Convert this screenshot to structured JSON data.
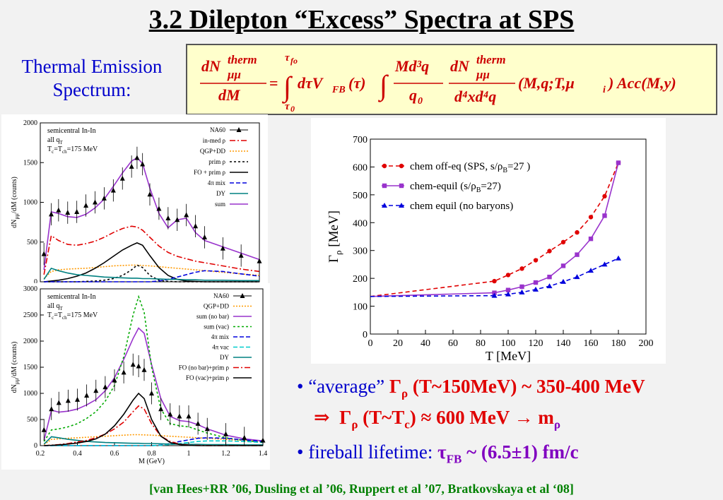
{
  "title": "3.2  Dilepton “Excess” Spectra  at SPS",
  "thermal_label": [
    "Thermal Emission",
    "Spectrum:"
  ],
  "formula": {
    "lhs_num": "dN",
    "lhs_sup": "therm",
    "lhs_sub": "μμ",
    "lhs_den": "dM",
    "upper_limit": "τ",
    "upper_limit_sub": "fo",
    "lower_limit": "τ",
    "lower_limit_sub": "0",
    "integrand1": "dτV",
    "integrand1_sub": "FB",
    "integrand1_arg": "(τ)",
    "frac2_num": "Md³q",
    "frac2_den": "q",
    "frac2_den_sub": "0",
    "frac3_num": "dN",
    "frac3_sup": "therm",
    "frac3_sub": "μμ",
    "frac3_den": "d⁴xd⁴q",
    "args": "(M,q;T,μ",
    "args_sub": "i",
    "args_end": ")  Acc(M,y)"
  },
  "chart_data": [
    {
      "type": "line",
      "title": "",
      "annotations": [
        "semicentral In-In",
        "all q",
        "T",
        "=T",
        "=175 MeV"
      ],
      "annotation_subs": [
        "T",
        "c",
        "ch"
      ],
      "ylabel": "dN",
      "ylabel_sub": "μμ",
      "ylabel_tail": "/dM (counts)",
      "ylim": [
        0,
        2000
      ],
      "yticks": [
        "0",
        "500",
        "1000",
        "1500",
        "2000"
      ],
      "xlim": [
        0.2,
        1.4
      ],
      "legend": [
        "NA60",
        "in-med ρ",
        "QGP+DD",
        "prim ρ",
        "FO + prim ρ",
        "4π mix",
        "DY",
        "sum"
      ],
      "colors": [
        "#000000",
        "#e00000",
        "#ff9900",
        "#000000",
        "#000000",
        "#0000dd",
        "#008080",
        "#9933cc"
      ],
      "x": [
        0.22,
        0.26,
        0.3,
        0.35,
        0.4,
        0.45,
        0.5,
        0.55,
        0.6,
        0.65,
        0.7,
        0.73,
        0.76,
        0.8,
        0.85,
        0.9,
        0.95,
        1.0,
        1.05,
        1.1,
        1.2,
        1.3,
        1.4
      ],
      "series": [
        {
          "name": "NA60",
          "values": [
            350,
            850,
            900,
            870,
            880,
            960,
            1000,
            1050,
            1150,
            1300,
            1450,
            1560,
            1480,
            1100,
            920,
            800,
            780,
            840,
            700,
            560,
            420,
            330,
            260
          ]
        },
        {
          "name": "in-med ρ",
          "values": [
            90,
            580,
            520,
            470,
            460,
            480,
            510,
            560,
            620,
            670,
            700,
            690,
            650,
            560,
            450,
            370,
            320,
            290,
            260,
            240,
            200,
            160,
            130
          ]
        },
        {
          "name": "QGP+DD",
          "values": [
            40,
            130,
            150,
            160,
            165,
            170,
            180,
            190,
            200,
            205,
            210,
            210,
            205,
            200,
            190,
            180,
            170,
            160,
            150,
            140,
            120,
            100,
            80
          ]
        },
        {
          "name": "prim ρ",
          "values": [
            0,
            0,
            0,
            0,
            0,
            5,
            10,
            20,
            40,
            80,
            150,
            210,
            180,
            80,
            20,
            5,
            0,
            0,
            0,
            0,
            0,
            0,
            0
          ]
        },
        {
          "name": "FO + prim ρ",
          "values": [
            0,
            10,
            20,
            40,
            70,
            110,
            170,
            240,
            320,
            400,
            460,
            490,
            460,
            330,
            180,
            80,
            30,
            10,
            5,
            0,
            0,
            0,
            0
          ]
        },
        {
          "name": "4π mix",
          "values": [
            0,
            0,
            0,
            0,
            0,
            0,
            0,
            0,
            0,
            0,
            0,
            0,
            0,
            0,
            10,
            30,
            60,
            90,
            120,
            140,
            130,
            100,
            70
          ]
        },
        {
          "name": "DY",
          "values": [
            30,
            170,
            140,
            110,
            90,
            80,
            70,
            60,
            55,
            50,
            45,
            45,
            40,
            40,
            35,
            30,
            30,
            25,
            25,
            20,
            20,
            15,
            15
          ]
        },
        {
          "name": "sum",
          "values": [
            150,
            880,
            860,
            820,
            810,
            850,
            930,
            1040,
            1200,
            1370,
            1520,
            1560,
            1490,
            1180,
            860,
            680,
            780,
            800,
            620,
            520,
            440,
            360,
            280
          ]
        }
      ]
    },
    {
      "type": "line",
      "title": "",
      "annotations": [
        "semicentral In-In",
        "all q",
        "T",
        "=T",
        "=175 MeV"
      ],
      "annotation_subs": [
        "T",
        "c",
        "ch"
      ],
      "ylabel": "dN",
      "ylabel_sub": "μμ",
      "ylabel_tail": "/dM (counts)",
      "xlabel": "M (GeV)",
      "ylim": [
        0,
        3000
      ],
      "yticks": [
        "0",
        "500",
        "1000",
        "1500",
        "2000",
        "2500",
        "3000"
      ],
      "xlim": [
        0.2,
        1.4
      ],
      "xticks": [
        "0.2",
        "0.4",
        "0.6",
        "0.8",
        "1",
        "1.2",
        "1.4"
      ],
      "legend": [
        "NA60",
        "QGP+DD",
        "sum (no bar)",
        "sum (vac)",
        "4π mix",
        "4π vac",
        "DY",
        "FO (no bar)+prim ρ",
        "FO (vac)+prim ρ"
      ],
      "colors": [
        "#000000",
        "#ff9900",
        "#9933cc",
        "#00aa00",
        "#0000dd",
        "#00cccc",
        "#008080",
        "#e00000",
        "#000000"
      ],
      "x": [
        0.22,
        0.26,
        0.3,
        0.35,
        0.4,
        0.45,
        0.5,
        0.55,
        0.6,
        0.65,
        0.7,
        0.73,
        0.76,
        0.8,
        0.85,
        0.9,
        0.95,
        1.0,
        1.05,
        1.1,
        1.2,
        1.3,
        1.4
      ],
      "series": [
        {
          "name": "NA60",
          "values": [
            300,
            700,
            820,
            860,
            880,
            960,
            1050,
            1120,
            1250,
            1400,
            1550,
            1520,
            1450,
            1000,
            700,
            600,
            560,
            560,
            420,
            320,
            220,
            150,
            100
          ]
        },
        {
          "name": "QGP+DD",
          "values": [
            20,
            120,
            130,
            140,
            150,
            160,
            170,
            180,
            190,
            200,
            210,
            210,
            205,
            200,
            190,
            180,
            170,
            160,
            150,
            140,
            120,
            100,
            80
          ]
        },
        {
          "name": "sum (no bar)",
          "values": [
            100,
            680,
            640,
            660,
            700,
            780,
            880,
            1050,
            1300,
            1650,
            2050,
            2250,
            2150,
            1550,
            900,
            560,
            480,
            460,
            400,
            320,
            200,
            130,
            90
          ]
        },
        {
          "name": "sum (vac)",
          "values": [
            80,
            300,
            320,
            360,
            420,
            520,
            650,
            850,
            1150,
            1700,
            2500,
            2850,
            2550,
            1500,
            700,
            420,
            380,
            360,
            300,
            240,
            150,
            100,
            60
          ]
        },
        {
          "name": "4π mix",
          "values": [
            0,
            0,
            0,
            0,
            0,
            0,
            0,
            0,
            0,
            0,
            0,
            0,
            0,
            0,
            10,
            40,
            80,
            110,
            140,
            150,
            140,
            110,
            80
          ]
        },
        {
          "name": "4π vac",
          "values": [
            0,
            0,
            0,
            0,
            0,
            0,
            0,
            0,
            0,
            0,
            0,
            0,
            0,
            0,
            5,
            20,
            40,
            60,
            80,
            90,
            90,
            80,
            60
          ]
        },
        {
          "name": "DY",
          "values": [
            30,
            170,
            150,
            120,
            100,
            80,
            70,
            60,
            55,
            50,
            45,
            45,
            40,
            40,
            35,
            30,
            30,
            25,
            25,
            20,
            20,
            15,
            15
          ]
        },
        {
          "name": "FO (no bar)+prim ρ",
          "values": [
            0,
            10,
            20,
            40,
            70,
            100,
            150,
            220,
            320,
            450,
            650,
            760,
            700,
            420,
            180,
            80,
            30,
            10,
            5,
            0,
            0,
            0,
            0
          ]
        },
        {
          "name": "FO (vac)+prim ρ",
          "values": [
            0,
            5,
            15,
            30,
            50,
            80,
            130,
            220,
            380,
            600,
            870,
            1000,
            900,
            500,
            180,
            60,
            20,
            5,
            0,
            0,
            0,
            0,
            0
          ]
        }
      ]
    },
    {
      "type": "line",
      "title": "",
      "xlabel": "T [MeV]",
      "ylabel": "Γ",
      "ylabel_sub": "ρ",
      "ylabel_tail": " [MeV]",
      "xlim": [
        0,
        200
      ],
      "ylim": [
        0,
        700
      ],
      "xticks": [
        "0",
        "20",
        "40",
        "60",
        "80",
        "100",
        "120",
        "140",
        "160",
        "180",
        "200"
      ],
      "yticks": [
        "0",
        "100",
        "200",
        "300",
        "400",
        "500",
        "600",
        "700"
      ],
      "legend_labels": [
        {
          "pre": "chem off-eq (SPS, s/ρ",
          "sub": "B",
          "post": "=27 )"
        },
        {
          "pre": "chem-equil (s/ρ",
          "sub": "B",
          "post": "=27)"
        },
        {
          "pre": "chem equil  (no baryons)",
          "sub": "",
          "post": ""
        }
      ],
      "legend_position": "top-left",
      "series": [
        {
          "name": "chem off-eq (SPS, s/ρB=27 )",
          "color": "#e00000",
          "marker": "circle",
          "dash": "dashed",
          "x": [
            0,
            90,
            100,
            110,
            120,
            130,
            140,
            150,
            160,
            170,
            180
          ],
          "values": [
            135,
            190,
            212,
            235,
            265,
            298,
            330,
            365,
            420,
            495,
            615
          ]
        },
        {
          "name": "chem-equil (s/ρB=27)",
          "color": "#9933cc",
          "marker": "square",
          "dash": "solid",
          "x": [
            0,
            90,
            100,
            110,
            120,
            130,
            140,
            150,
            160,
            170,
            180
          ],
          "values": [
            135,
            148,
            158,
            170,
            185,
            205,
            245,
            285,
            342,
            425,
            615
          ]
        },
        {
          "name": "chem equil  (no baryons)",
          "color": "#0000dd",
          "marker": "triangle",
          "dash": "dashed",
          "x": [
            0,
            90,
            100,
            110,
            120,
            130,
            140,
            150,
            160,
            170,
            180
          ],
          "values": [
            135,
            138,
            143,
            150,
            160,
            172,
            188,
            205,
            228,
            250,
            272
          ]
        }
      ]
    }
  ],
  "bullets": {
    "b1_pre": "• “average” ",
    "b1_gamma": "Γ",
    "b1_gamma_sub": "ρ",
    "b1_rest": " (T~150MeV) ~ 350-400 MeV",
    "b2_arrow": "⇒",
    "b2_gamma": "Γ",
    "b2_gamma_sub": "ρ",
    "b2_mid": " (T~T",
    "b2_mid_sub": "c",
    "b2_rest": ") ≈ 600 MeV  →  m",
    "b2_m_sub": "ρ",
    "b3_pre": "• fireball lifetime: ",
    "b3_tau": "τ",
    "b3_tau_sub": "FB",
    "b3_rest": " ~ (6.5±1) fm/c"
  },
  "references": "[van Hees+RR ’06, Dusling et al ’06, Ruppert et al ’07, Bratkovskaya et al ‘08]"
}
